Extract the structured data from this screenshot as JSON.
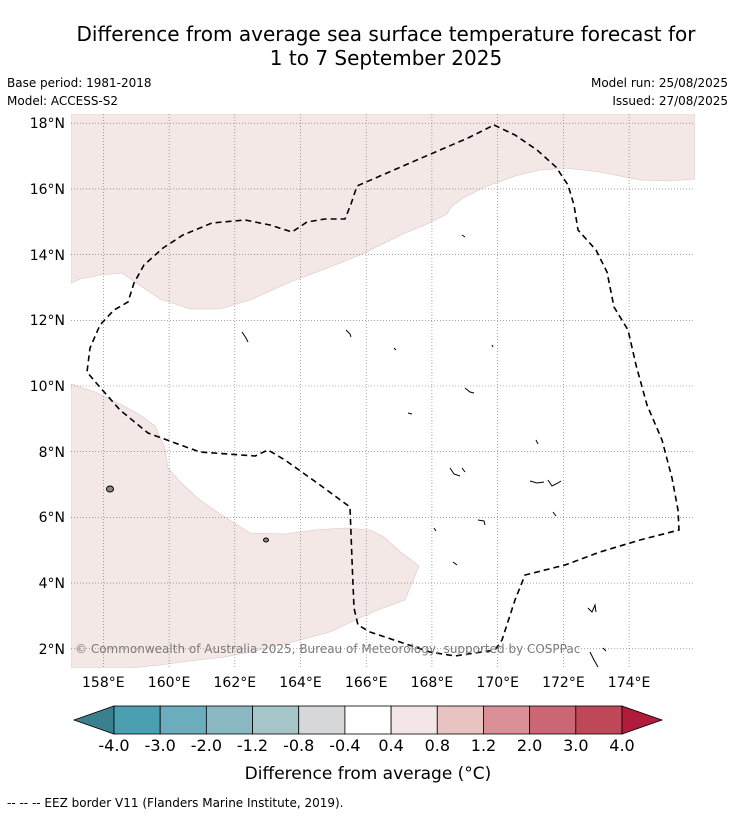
{
  "title": {
    "line1": "Difference from average sea surface temperature forecast for",
    "line2": "1 to 7 September 2025"
  },
  "meta": {
    "base_period": "Base period: 1981-2018",
    "model": "Model: ACCESS-S2",
    "model_run": "Model run: 25/08/2025",
    "issued": "Issued: 27/08/2025"
  },
  "map": {
    "lat_ticks": [
      "18°N",
      "16°N",
      "14°N",
      "12°N",
      "10°N",
      "8°N",
      "6°N",
      "4°N",
      "2°N"
    ],
    "lon_ticks": [
      "158°E",
      "160°E",
      "162°E",
      "164°E",
      "166°E",
      "168°E",
      "170°E",
      "172°E",
      "174°E"
    ],
    "copyright": "© Commonwealth of Australia 2025, Bureau of Meteorology, supported by COSPPac",
    "anomaly_fill_color": "#f4e8e7",
    "eez_border_style": "dashed black"
  },
  "colorbar": {
    "title": "Difference from average (°C)",
    "ticks": [
      "-4.0",
      "-3.0",
      "-2.0",
      "-1.2",
      "-0.8",
      "-0.4",
      "0.4",
      "0.8",
      "1.2",
      "2.0",
      "3.0",
      "4.0"
    ],
    "colors": [
      "#4a9fb1",
      "#6cadbd",
      "#8ab8c3",
      "#a6c5c9",
      "#d5d7d8",
      "#ffffff",
      "#f4e6e6",
      "#e8c3c2",
      "#d98f95",
      "#cb6674",
      "#bf4858"
    ],
    "under_color": "#3b808e",
    "over_color": "#b11b3c"
  },
  "legend": {
    "eez_note": "--  --  -- EEZ border V11 (Flanders Marine Institute, 2019)."
  }
}
